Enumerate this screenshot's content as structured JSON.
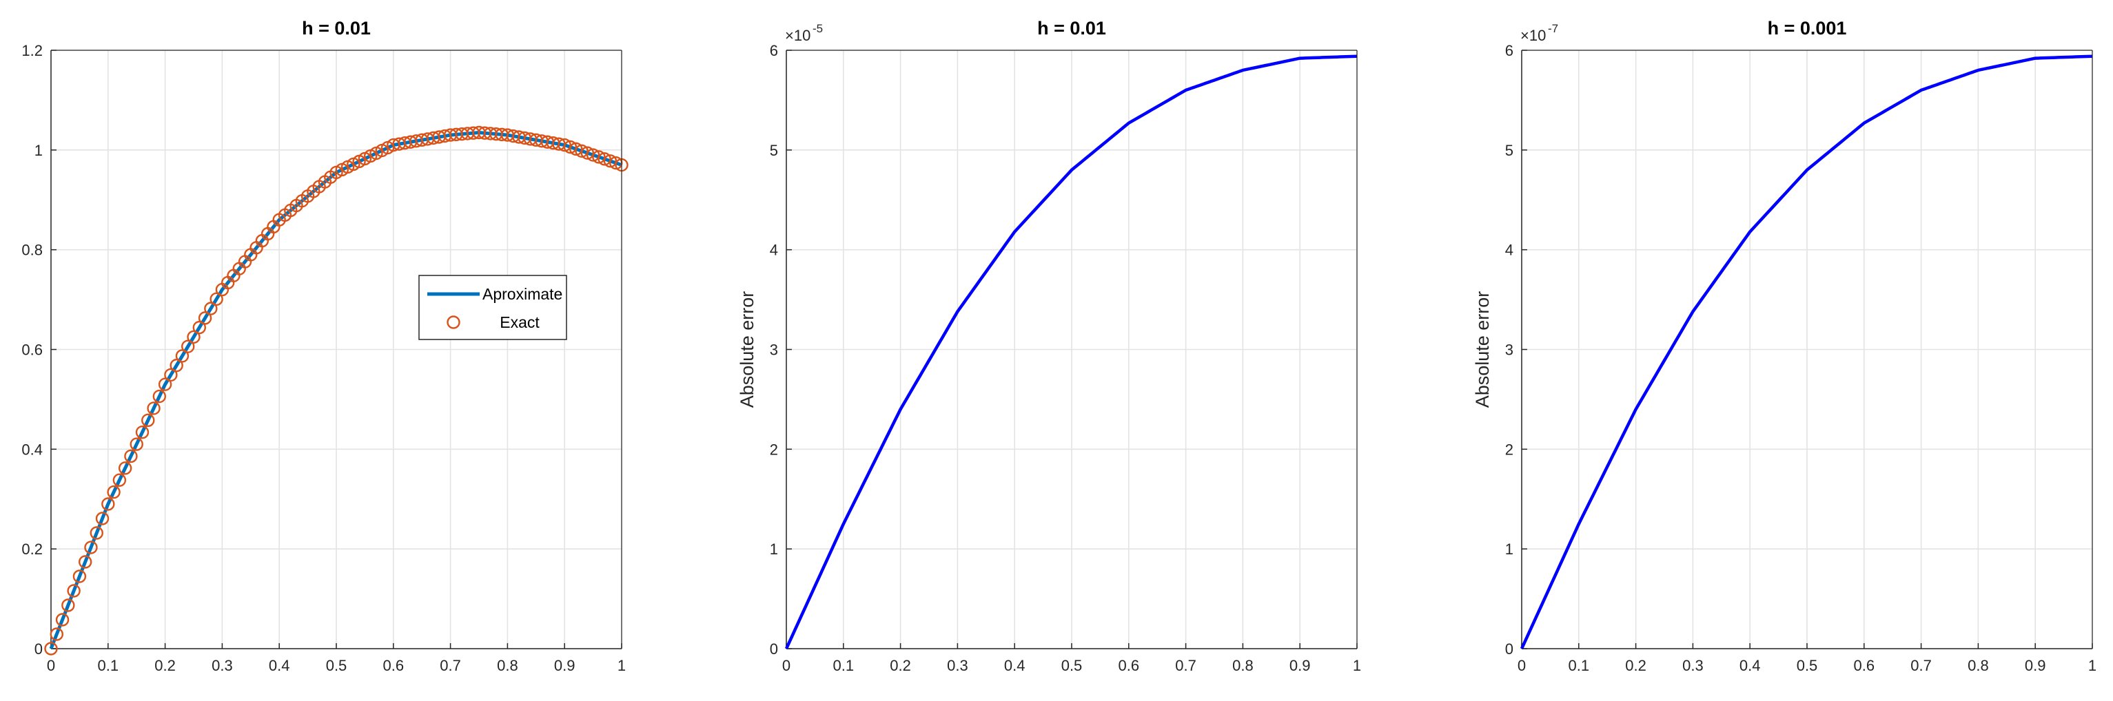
{
  "chart_data": [
    {
      "type": "line+scatter",
      "title": "h = 0.01",
      "xlabel": "",
      "ylabel": "",
      "xlim": [
        0,
        1
      ],
      "ylim": [
        0,
        1.2
      ],
      "xticks": [
        "0",
        "0.1",
        "0.2",
        "0.3",
        "0.4",
        "0.5",
        "0.6",
        "0.7",
        "0.8",
        "0.9",
        "1"
      ],
      "yticks": [
        "0",
        "0.2",
        "0.4",
        "0.6",
        "0.8",
        "1",
        "1.2"
      ],
      "grid": true,
      "legend": {
        "position": "center-right",
        "entries": [
          "Aproximate",
          "Exact"
        ]
      },
      "series": [
        {
          "name": "Aproximate",
          "style": "line",
          "color": "#0072BD",
          "x": [
            0,
            0.1,
            0.2,
            0.3,
            0.4,
            0.5,
            0.6,
            0.7,
            0.75,
            0.8,
            0.9,
            1.0
          ],
          "y": [
            0,
            0.29,
            0.53,
            0.72,
            0.86,
            0.955,
            1.01,
            1.03,
            1.035,
            1.03,
            1.01,
            0.97
          ]
        },
        {
          "name": "Exact",
          "style": "marker-o",
          "color": "#D95319",
          "x": [
            0,
            0.1,
            0.2,
            0.3,
            0.4,
            0.5,
            0.6,
            0.7,
            0.75,
            0.8,
            0.9,
            1.0
          ],
          "y": [
            0,
            0.29,
            0.53,
            0.72,
            0.86,
            0.955,
            1.01,
            1.03,
            1.035,
            1.03,
            1.01,
            0.97
          ]
        }
      ]
    },
    {
      "type": "line",
      "title": "h = 0.01",
      "xlabel": "",
      "ylabel": "Absolute error",
      "exponent_base": "×10",
      "exponent_power": "-5",
      "xlim": [
        0,
        1
      ],
      "ylim": [
        0,
        6
      ],
      "xticks": [
        "0",
        "0.1",
        "0.2",
        "0.3",
        "0.4",
        "0.5",
        "0.6",
        "0.7",
        "0.8",
        "0.9",
        "1"
      ],
      "yticks": [
        "0",
        "1",
        "2",
        "3",
        "4",
        "5",
        "6"
      ],
      "grid": true,
      "series": [
        {
          "color": "#0000FF",
          "x": [
            0,
            0.1,
            0.2,
            0.3,
            0.4,
            0.5,
            0.6,
            0.7,
            0.8,
            0.9,
            1.0
          ],
          "y": [
            0,
            1.25,
            2.4,
            3.38,
            4.18,
            4.8,
            5.27,
            5.6,
            5.8,
            5.92,
            5.94
          ]
        }
      ]
    },
    {
      "type": "line",
      "title": "h = 0.001",
      "xlabel": "",
      "ylabel": "Absolute error",
      "exponent_base": "×10",
      "exponent_power": "-7",
      "xlim": [
        0,
        1
      ],
      "ylim": [
        0,
        6
      ],
      "xticks": [
        "0",
        "0.1",
        "0.2",
        "0.3",
        "0.4",
        "0.5",
        "0.6",
        "0.7",
        "0.8",
        "0.9",
        "1"
      ],
      "yticks": [
        "0",
        "1",
        "2",
        "3",
        "4",
        "5",
        "6"
      ],
      "grid": true,
      "series": [
        {
          "color": "#0000FF",
          "x": [
            0,
            0.1,
            0.2,
            0.3,
            0.4,
            0.5,
            0.6,
            0.7,
            0.8,
            0.9,
            1.0
          ],
          "y": [
            0,
            1.25,
            2.4,
            3.38,
            4.18,
            4.8,
            5.27,
            5.6,
            5.8,
            5.92,
            5.94
          ]
        }
      ]
    }
  ]
}
